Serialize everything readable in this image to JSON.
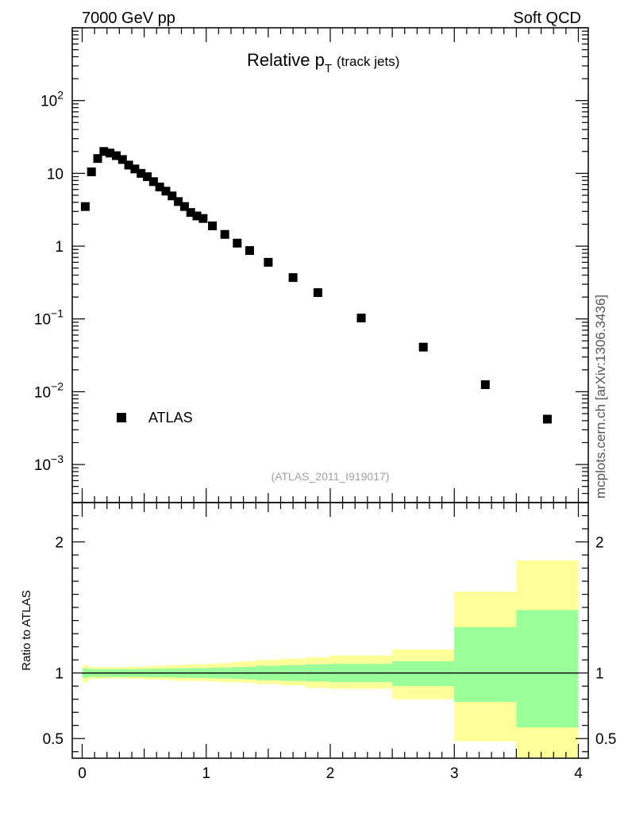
{
  "header": {
    "energy_label": "7000 GeV pp",
    "category_label": "Soft QCD"
  },
  "side_label": "mcplots.cern.ch [arXiv:1306.3436]",
  "chart_data": {
    "type": "scatter",
    "title_main": "Relative p",
    "title_sub": "T",
    "title_suffix": "(track jets)",
    "analysis_id": "(ATLAS_2011_I919017)",
    "legend": {
      "label": "ATLAS",
      "placement": "bottom-left"
    },
    "xlim": [
      -0.08,
      4.08
    ],
    "ylim_log": [
      0.0003,
      1000
    ],
    "y_tick_labels": [
      {
        "value": 0.001,
        "base": "10",
        "exp": "−3"
      },
      {
        "value": 0.01,
        "base": "10",
        "exp": "−2"
      },
      {
        "value": 0.1,
        "base": "10",
        "exp": "−1"
      },
      {
        "value": 1,
        "base": "1",
        "exp": ""
      },
      {
        "value": 10,
        "base": "10",
        "exp": ""
      },
      {
        "value": 100,
        "base": "10",
        "exp": "2"
      }
    ],
    "series": [
      {
        "name": "ATLAS",
        "x": [
          0.025,
          0.075,
          0.125,
          0.175,
          0.225,
          0.275,
          0.325,
          0.375,
          0.425,
          0.475,
          0.525,
          0.575,
          0.625,
          0.675,
          0.725,
          0.775,
          0.825,
          0.875,
          0.925,
          0.975,
          1.05,
          1.15,
          1.25,
          1.35,
          1.5,
          1.7,
          1.9,
          2.25,
          2.75,
          3.25,
          3.75
        ],
        "y": [
          3.5,
          10.5,
          16.0,
          20.0,
          19.0,
          17.5,
          15.5,
          13.0,
          11.5,
          10.0,
          9.0,
          7.7,
          6.5,
          5.7,
          4.9,
          4.1,
          3.5,
          2.9,
          2.6,
          2.4,
          1.9,
          1.45,
          1.1,
          0.87,
          0.6,
          0.37,
          0.23,
          0.103,
          0.041,
          0.0125,
          0.0042
        ]
      }
    ],
    "ratio": {
      "ylabel": "Ratio to ATLAS",
      "ylim": [
        0.35,
        2.3
      ],
      "y_tick_labels": [
        0.5,
        1,
        2
      ],
      "x_tick_labels": [
        0,
        1,
        2,
        3,
        4
      ],
      "reference_line": 1,
      "bin_edges": [
        0,
        0.05,
        0.1,
        0.15,
        0.2,
        0.25,
        0.3,
        0.35,
        0.4,
        0.45,
        0.5,
        0.55,
        0.6,
        0.65,
        0.7,
        0.75,
        0.8,
        0.85,
        0.9,
        0.95,
        1.0,
        1.1,
        1.2,
        1.3,
        1.4,
        1.6,
        1.8,
        2.0,
        2.5,
        3.0,
        3.5,
        4.0
      ],
      "total_band_low": [
        0.93,
        0.955,
        0.955,
        0.955,
        0.96,
        0.96,
        0.96,
        0.955,
        0.955,
        0.955,
        0.95,
        0.95,
        0.95,
        0.945,
        0.945,
        0.94,
        0.94,
        0.94,
        0.94,
        0.94,
        0.935,
        0.93,
        0.93,
        0.925,
        0.915,
        0.905,
        0.885,
        0.88,
        0.8,
        0.48,
        0.34
      ],
      "total_band_high": [
        1.06,
        1.045,
        1.045,
        1.045,
        1.045,
        1.045,
        1.045,
        1.05,
        1.05,
        1.05,
        1.05,
        1.055,
        1.055,
        1.06,
        1.06,
        1.06,
        1.065,
        1.065,
        1.065,
        1.065,
        1.07,
        1.075,
        1.085,
        1.09,
        1.1,
        1.11,
        1.12,
        1.135,
        1.18,
        1.62,
        1.86
      ],
      "stat_band_low": [
        0.965,
        0.97,
        0.97,
        0.97,
        0.97,
        0.97,
        0.97,
        0.97,
        0.97,
        0.97,
        0.968,
        0.968,
        0.968,
        0.966,
        0.966,
        0.964,
        0.964,
        0.963,
        0.963,
        0.963,
        0.96,
        0.958,
        0.955,
        0.952,
        0.945,
        0.94,
        0.935,
        0.93,
        0.9,
        0.78,
        0.585
      ],
      "stat_band_high": [
        1.035,
        1.03,
        1.03,
        1.03,
        1.03,
        1.03,
        1.03,
        1.03,
        1.03,
        1.03,
        1.032,
        1.032,
        1.032,
        1.034,
        1.034,
        1.036,
        1.036,
        1.037,
        1.037,
        1.037,
        1.04,
        1.042,
        1.045,
        1.048,
        1.055,
        1.06,
        1.065,
        1.07,
        1.09,
        1.35,
        1.48
      ]
    },
    "colors": {
      "marker": "#000000",
      "total_band": "#ffff99",
      "stat_band": "#99ff99",
      "axes": "#000000"
    }
  }
}
